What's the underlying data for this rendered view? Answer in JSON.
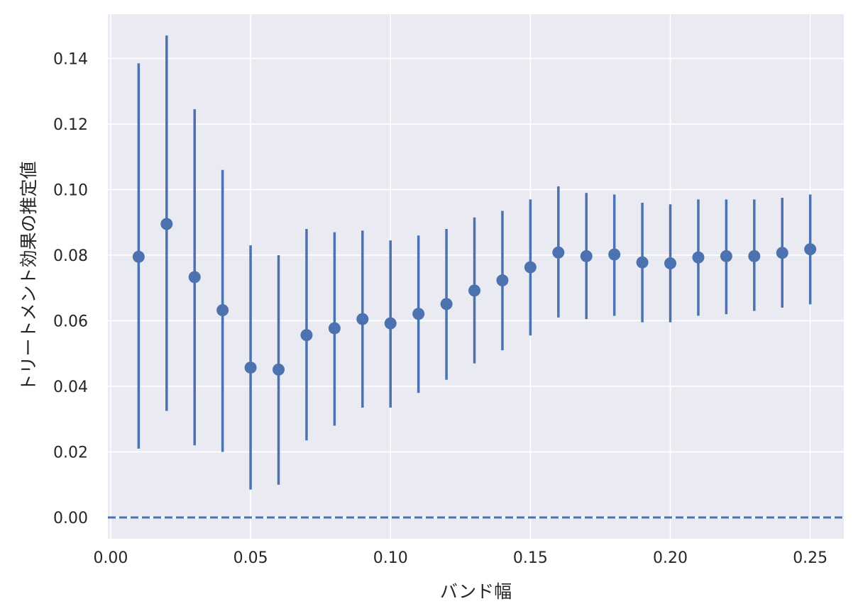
{
  "chart_data": {
    "type": "scatter",
    "subtype": "errorbar",
    "title": "",
    "xlabel": "バンド幅",
    "ylabel": "トリートメント効果の推定値",
    "xlim": [
      -0.001,
      0.262
    ],
    "ylim": [
      -0.0065,
      0.1535
    ],
    "x_ticks": [
      "0.00",
      "0.05",
      "0.10",
      "0.15",
      "0.20",
      "0.25"
    ],
    "y_ticks": [
      "0.00",
      "0.02",
      "0.04",
      "0.06",
      "0.08",
      "0.10",
      "0.12",
      "0.14"
    ],
    "grid": true,
    "background": "#eaeaf2",
    "grid_color": "#ffffff",
    "series_color": "#4c72b0",
    "reference_line": {
      "y": 0,
      "style": "dashed"
    },
    "points": [
      {
        "x": 0.01,
        "y": 0.0795,
        "lower": 0.021,
        "upper": 0.1385
      },
      {
        "x": 0.02,
        "y": 0.0895,
        "lower": 0.0325,
        "upper": 0.147
      },
      {
        "x": 0.03,
        "y": 0.0733,
        "lower": 0.022,
        "upper": 0.1245
      },
      {
        "x": 0.04,
        "y": 0.0632,
        "lower": 0.02,
        "upper": 0.106
      },
      {
        "x": 0.05,
        "y": 0.0457,
        "lower": 0.0085,
        "upper": 0.083
      },
      {
        "x": 0.06,
        "y": 0.0451,
        "lower": 0.01,
        "upper": 0.08
      },
      {
        "x": 0.07,
        "y": 0.0556,
        "lower": 0.0235,
        "upper": 0.088
      },
      {
        "x": 0.08,
        "y": 0.0577,
        "lower": 0.028,
        "upper": 0.087
      },
      {
        "x": 0.09,
        "y": 0.0605,
        "lower": 0.0335,
        "upper": 0.0875
      },
      {
        "x": 0.1,
        "y": 0.0592,
        "lower": 0.0335,
        "upper": 0.0845
      },
      {
        "x": 0.11,
        "y": 0.0621,
        "lower": 0.038,
        "upper": 0.086
      },
      {
        "x": 0.12,
        "y": 0.0651,
        "lower": 0.042,
        "upper": 0.088
      },
      {
        "x": 0.13,
        "y": 0.0692,
        "lower": 0.047,
        "upper": 0.0915
      },
      {
        "x": 0.14,
        "y": 0.0723,
        "lower": 0.051,
        "upper": 0.0935
      },
      {
        "x": 0.15,
        "y": 0.0763,
        "lower": 0.0555,
        "upper": 0.097
      },
      {
        "x": 0.16,
        "y": 0.0808,
        "lower": 0.061,
        "upper": 0.101
      },
      {
        "x": 0.17,
        "y": 0.0797,
        "lower": 0.0605,
        "upper": 0.099
      },
      {
        "x": 0.18,
        "y": 0.0802,
        "lower": 0.0615,
        "upper": 0.0985
      },
      {
        "x": 0.19,
        "y": 0.0778,
        "lower": 0.0595,
        "upper": 0.096
      },
      {
        "x": 0.2,
        "y": 0.0775,
        "lower": 0.0595,
        "upper": 0.0955
      },
      {
        "x": 0.21,
        "y": 0.0793,
        "lower": 0.0615,
        "upper": 0.097
      },
      {
        "x": 0.22,
        "y": 0.0797,
        "lower": 0.062,
        "upper": 0.097
      },
      {
        "x": 0.23,
        "y": 0.0797,
        "lower": 0.063,
        "upper": 0.097
      },
      {
        "x": 0.24,
        "y": 0.0807,
        "lower": 0.064,
        "upper": 0.0975
      },
      {
        "x": 0.25,
        "y": 0.0818,
        "lower": 0.065,
        "upper": 0.0985
      }
    ]
  }
}
